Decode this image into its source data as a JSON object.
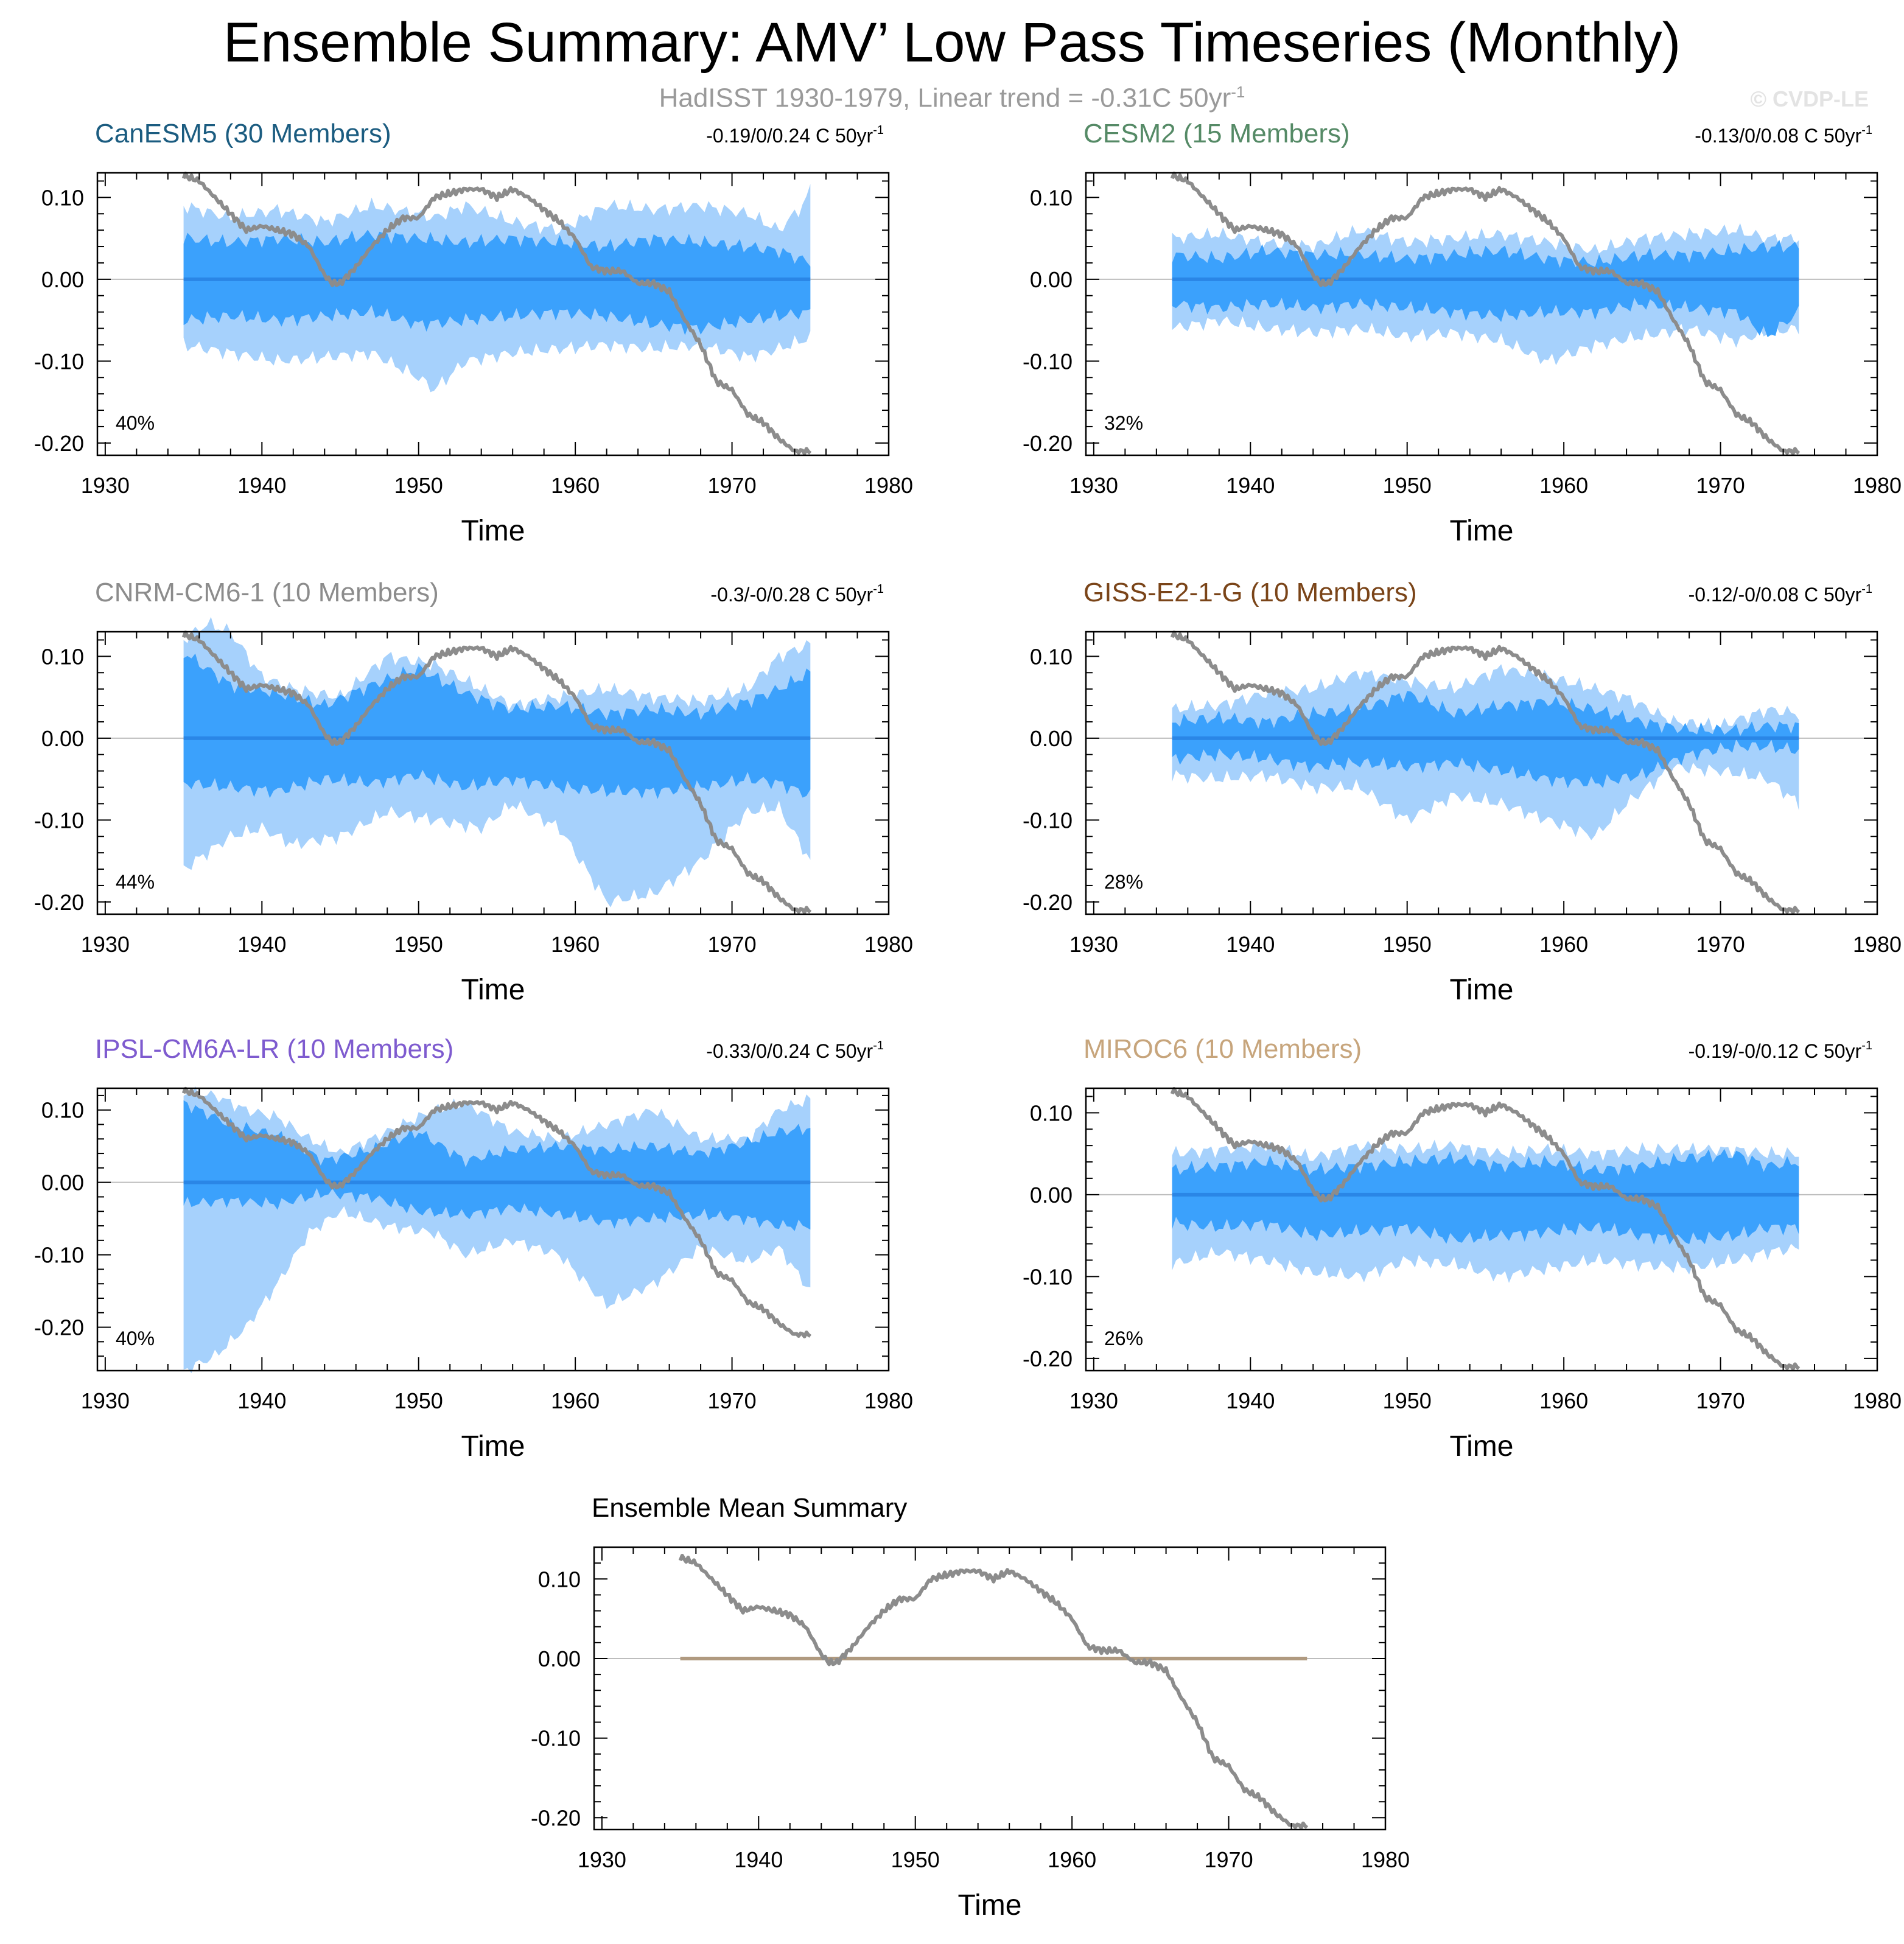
{
  "header": {
    "title": "Ensemble Summary: AMV’ Low Pass Timeseries (Monthly)",
    "subtitle": "HadISST 1930-1979, Linear trend = -0.31C 50yr",
    "subtitle_exp": "-1",
    "copyright": "© CVDP-LE"
  },
  "colors": {
    "outer_band": "#a6d1fc",
    "inner_band": "#3ba1fc",
    "member_line": "#2a86e6",
    "obs_line": "#8c8c8c",
    "zero_line": "#bdbdbd"
  },
  "chart_data": [
    {
      "type": "area",
      "title": "CanESM5 (30 Members)",
      "title_color": "#1b5c80",
      "trend": "-0.19/0/0.24 C 50yr",
      "trend_exp": "-1",
      "percent": "40%",
      "xlabel": "Time",
      "xlim": [
        1929.5,
        1980
      ],
      "ylim": [
        -0.215,
        0.13
      ],
      "xticks": [
        1930,
        1940,
        1950,
        1960,
        1970,
        1980
      ],
      "yticks": [
        0.1,
        0.0,
        -0.1,
        -0.2
      ],
      "ytick_labels": [
        "0.10",
        "0.00",
        "-0.10",
        "-0.20"
      ],
      "outer_band": {
        "x": [
          1935,
          1938,
          1941,
          1944,
          1947,
          1950,
          1951,
          1953,
          1956,
          1959,
          1962,
          1965,
          1968,
          1971,
          1973,
          1974.5,
          1975
        ],
        "upper": [
          0.09,
          0.075,
          0.085,
          0.07,
          0.09,
          0.08,
          0.075,
          0.09,
          0.07,
          0.06,
          0.09,
          0.085,
          0.09,
          0.08,
          0.06,
          0.09,
          0.11
        ],
        "lower": [
          -0.08,
          -0.09,
          -0.1,
          -0.095,
          -0.09,
          -0.12,
          -0.135,
          -0.1,
          -0.09,
          -0.085,
          -0.08,
          -0.085,
          -0.08,
          -0.095,
          -0.085,
          -0.075,
          -0.07
        ]
      },
      "inner_band": {
        "x": [
          1935,
          1938,
          1941,
          1944,
          1947,
          1950,
          1953,
          1956,
          1959,
          1962,
          1965,
          1968,
          1971,
          1973,
          1975
        ],
        "upper": [
          0.05,
          0.045,
          0.05,
          0.045,
          0.055,
          0.05,
          0.045,
          0.05,
          0.045,
          0.04,
          0.05,
          0.045,
          0.04,
          0.035,
          0.02
        ],
        "lower": [
          -0.05,
          -0.045,
          -0.05,
          -0.045,
          -0.04,
          -0.055,
          -0.05,
          -0.045,
          -0.04,
          -0.045,
          -0.055,
          -0.06,
          -0.05,
          -0.045,
          -0.04
        ]
      }
    },
    {
      "type": "area",
      "title": "CESM2 (15 Members)",
      "title_color": "#558a66",
      "trend": "-0.13/0/0.08 C 50yr",
      "trend_exp": "-1",
      "percent": "32%",
      "xlabel": "Time",
      "xlim": [
        1929.5,
        1980
      ],
      "ylim": [
        -0.215,
        0.13
      ],
      "xticks": [
        1930,
        1940,
        1950,
        1960,
        1970,
        1980
      ],
      "yticks": [
        0.1,
        0.0,
        -0.1,
        -0.2
      ],
      "ytick_labels": [
        "0.10",
        "0.00",
        "-0.10",
        "-0.20"
      ],
      "outer_band": {
        "x": [
          1935,
          1938,
          1941,
          1944,
          1947,
          1950,
          1953,
          1956,
          1959,
          1962,
          1965,
          1968,
          1971,
          1973,
          1975
        ],
        "upper": [
          0.05,
          0.055,
          0.045,
          0.04,
          0.06,
          0.045,
          0.05,
          0.055,
          0.045,
          0.035,
          0.05,
          0.055,
          0.06,
          0.05,
          0.05
        ],
        "lower": [
          -0.06,
          -0.05,
          -0.06,
          -0.065,
          -0.06,
          -0.07,
          -0.065,
          -0.075,
          -0.1,
          -0.08,
          -0.07,
          -0.06,
          -0.075,
          -0.065,
          -0.06
        ]
      },
      "inner_band": {
        "x": [
          1935,
          1938,
          1941,
          1944,
          1947,
          1950,
          1953,
          1956,
          1959,
          1962,
          1965,
          1968,
          1971,
          1973,
          1975
        ],
        "upper": [
          0.03,
          0.025,
          0.035,
          0.03,
          0.03,
          0.025,
          0.03,
          0.035,
          0.025,
          0.02,
          0.03,
          0.03,
          0.035,
          0.04,
          0.04
        ],
        "lower": [
          -0.03,
          -0.035,
          -0.03,
          -0.035,
          -0.03,
          -0.035,
          -0.04,
          -0.045,
          -0.04,
          -0.04,
          -0.03,
          -0.035,
          -0.04,
          -0.07,
          -0.04
        ]
      }
    },
    {
      "type": "area",
      "title": "CNRM-CM6-1 (10 Members)",
      "title_color": "#8c8c8c",
      "trend": "-0.3/-0/0.28 C 50yr",
      "trend_exp": "-1",
      "percent": "44%",
      "xlabel": "Time",
      "xlim": [
        1929.5,
        1980
      ],
      "ylim": [
        -0.215,
        0.13
      ],
      "xticks": [
        1930,
        1940,
        1950,
        1960,
        1970,
        1980
      ],
      "yticks": [
        0.1,
        0.0,
        -0.1,
        -0.2
      ],
      "ytick_labels": [
        "0.10",
        "0.00",
        "-0.10",
        "-0.20"
      ],
      "outer_band": {
        "x": [
          1935,
          1936.5,
          1938,
          1940,
          1942,
          1945,
          1948,
          1951,
          1954,
          1956,
          1959,
          1962,
          1965,
          1968,
          1971,
          1973,
          1975
        ],
        "upper": [
          0.12,
          0.14,
          0.13,
          0.075,
          0.06,
          0.05,
          0.1,
          0.09,
          0.06,
          0.04,
          0.05,
          0.06,
          0.05,
          0.045,
          0.06,
          0.1,
          0.115
        ],
        "lower": [
          -0.16,
          -0.14,
          -0.12,
          -0.11,
          -0.13,
          -0.12,
          -0.09,
          -0.1,
          -0.11,
          -0.08,
          -0.11,
          -0.2,
          -0.19,
          -0.15,
          -0.09,
          -0.085,
          -0.15
        ]
      },
      "inner_band": {
        "x": [
          1935,
          1938,
          1941,
          1944,
          1947,
          1950,
          1953,
          1956,
          1959,
          1962,
          1965,
          1968,
          1971,
          1973,
          1975
        ],
        "upper": [
          0.105,
          0.065,
          0.055,
          0.04,
          0.065,
          0.085,
          0.055,
          0.035,
          0.04,
          0.03,
          0.035,
          0.03,
          0.045,
          0.06,
          0.08
        ],
        "lower": [
          -0.055,
          -0.06,
          -0.065,
          -0.05,
          -0.055,
          -0.045,
          -0.06,
          -0.05,
          -0.06,
          -0.065,
          -0.065,
          -0.06,
          -0.05,
          -0.055,
          -0.07
        ]
      }
    },
    {
      "type": "area",
      "title": "GISS-E2-1-G (10 Members)",
      "title_color": "#7a4418",
      "trend": "-0.12/-0/0.08 C 50yr",
      "trend_exp": "-1",
      "percent": "28%",
      "xlabel": "Time",
      "xlim": [
        1929.5,
        1980
      ],
      "ylim": [
        -0.215,
        0.13
      ],
      "xticks": [
        1930,
        1940,
        1950,
        1960,
        1970,
        1980
      ],
      "yticks": [
        0.1,
        0.0,
        -0.1,
        -0.2
      ],
      "ytick_labels": [
        "0.10",
        "0.00",
        "-0.10",
        "-0.20"
      ],
      "outer_band": {
        "x": [
          1935,
          1938,
          1941,
          1944,
          1947,
          1950,
          1953,
          1956,
          1959,
          1962,
          1964,
          1967,
          1970,
          1973,
          1975
        ],
        "upper": [
          0.035,
          0.04,
          0.055,
          0.06,
          0.08,
          0.07,
          0.06,
          0.085,
          0.075,
          0.06,
          0.05,
          0.02,
          0.015,
          0.035,
          0.03
        ],
        "lower": [
          -0.045,
          -0.05,
          -0.045,
          -0.06,
          -0.06,
          -0.1,
          -0.07,
          -0.08,
          -0.1,
          -0.12,
          -0.08,
          -0.035,
          -0.04,
          -0.05,
          -0.08
        ]
      },
      "inner_band": {
        "x": [
          1935,
          1938,
          1941,
          1944,
          1947,
          1950,
          1953,
          1956,
          1959,
          1962,
          1965,
          1968,
          1971,
          1973,
          1975
        ],
        "upper": [
          0.02,
          0.025,
          0.02,
          0.03,
          0.035,
          0.055,
          0.03,
          0.04,
          0.045,
          0.035,
          0.02,
          0.01,
          0.01,
          0.015,
          0.015
        ],
        "lower": [
          -0.025,
          -0.02,
          -0.025,
          -0.035,
          -0.03,
          -0.035,
          -0.03,
          -0.04,
          -0.05,
          -0.055,
          -0.045,
          -0.02,
          -0.01,
          -0.01,
          -0.015
        ]
      }
    },
    {
      "type": "area",
      "title": "IPSL-CM6A-LR (10 Members)",
      "title_color": "#7e5bcf",
      "trend": "-0.33/0/0.24 C 50yr",
      "trend_exp": "-1",
      "percent": "40%",
      "xlabel": "Time",
      "xlim": [
        1929.5,
        1980
      ],
      "ylim": [
        -0.26,
        0.13
      ],
      "xticks": [
        1930,
        1940,
        1950,
        1960,
        1970,
        1980
      ],
      "yticks": [
        0.1,
        0.0,
        -0.1,
        -0.2
      ],
      "ytick_labels": [
        "0.10",
        "0.00",
        "-0.10",
        "-0.20"
      ],
      "outer_band": {
        "x": [
          1935,
          1937,
          1939,
          1941,
          1943,
          1945,
          1948,
          1951,
          1953,
          1956,
          1959,
          1962,
          1965,
          1968,
          1971,
          1973,
          1975
        ],
        "upper": [
          0.125,
          0.12,
          0.1,
          0.09,
          0.06,
          0.04,
          0.07,
          0.1,
          0.11,
          0.07,
          0.06,
          0.08,
          0.1,
          0.06,
          0.06,
          0.1,
          0.115
        ],
        "lower": [
          -0.26,
          -0.24,
          -0.2,
          -0.14,
          -0.07,
          -0.04,
          -0.06,
          -0.07,
          -0.1,
          -0.08,
          -0.1,
          -0.17,
          -0.14,
          -0.09,
          -0.11,
          -0.09,
          -0.15
        ]
      },
      "inner_band": {
        "x": [
          1935,
          1938,
          1941,
          1944,
          1947,
          1950,
          1953,
          1956,
          1959,
          1962,
          1965,
          1968,
          1971,
          1973,
          1975
        ],
        "upper": [
          0.11,
          0.08,
          0.065,
          0.03,
          0.045,
          0.07,
          0.03,
          0.045,
          0.05,
          0.045,
          0.05,
          0.04,
          0.055,
          0.07,
          0.075
        ],
        "lower": [
          -0.03,
          -0.025,
          -0.03,
          -0.015,
          -0.02,
          -0.04,
          -0.045,
          -0.035,
          -0.045,
          -0.055,
          -0.05,
          -0.045,
          -0.05,
          -0.06,
          -0.06
        ]
      }
    },
    {
      "type": "area",
      "title": "MIROC6 (10 Members)",
      "title_color": "#c7a57c",
      "trend": "-0.19/-0/0.12 C 50yr",
      "trend_exp": "-1",
      "percent": "26%",
      "xlabel": "Time",
      "xlim": [
        1929.5,
        1980
      ],
      "ylim": [
        -0.215,
        0.13
      ],
      "xticks": [
        1930,
        1940,
        1950,
        1960,
        1970,
        1980
      ],
      "yticks": [
        0.1,
        0.0,
        -0.1,
        -0.2
      ],
      "ytick_labels": [
        "0.10",
        "0.00",
        "-0.10",
        "-0.20"
      ],
      "outer_band": {
        "x": [
          1935,
          1938,
          1941,
          1944,
          1947,
          1950,
          1953,
          1956,
          1959,
          1962,
          1965,
          1968,
          1971,
          1973,
          1975
        ],
        "upper": [
          0.05,
          0.055,
          0.06,
          0.045,
          0.06,
          0.055,
          0.06,
          0.05,
          0.055,
          0.05,
          0.055,
          0.055,
          0.055,
          0.05,
          0.05
        ],
        "lower": [
          -0.085,
          -0.07,
          -0.08,
          -0.095,
          -0.1,
          -0.08,
          -0.085,
          -0.1,
          -0.09,
          -0.08,
          -0.085,
          -0.09,
          -0.08,
          -0.07,
          -0.065
        ]
      },
      "inner_band": {
        "x": [
          1935,
          1938,
          1941,
          1944,
          1947,
          1950,
          1953,
          1956,
          1959,
          1962,
          1965,
          1968,
          1971,
          1973,
          1975
        ],
        "upper": [
          0.03,
          0.035,
          0.04,
          0.03,
          0.035,
          0.04,
          0.045,
          0.035,
          0.04,
          0.03,
          0.035,
          0.045,
          0.05,
          0.035,
          0.04
        ],
        "lower": [
          -0.035,
          -0.04,
          -0.035,
          -0.05,
          -0.045,
          -0.04,
          -0.055,
          -0.05,
          -0.045,
          -0.04,
          -0.05,
          -0.055,
          -0.05,
          -0.04,
          -0.04
        ]
      }
    },
    {
      "type": "line",
      "title": "Ensemble Mean Summary",
      "title_color": "#000000",
      "xlabel": "Time",
      "xlim": [
        1929.5,
        1980
      ],
      "ylim": [
        -0.215,
        0.14
      ],
      "xticks": [
        1930,
        1940,
        1950,
        1960,
        1970,
        1980
      ],
      "yticks": [
        0.1,
        0.0,
        -0.1,
        -0.2
      ],
      "ytick_labels": [
        "0.10",
        "0.00",
        "-0.10",
        "-0.20"
      ],
      "mean_line": {
        "x": [
          1935,
          1975
        ],
        "y": [
          0,
          0
        ],
        "color": "#b09a80"
      }
    }
  ],
  "obs_series": {
    "name": "HadISST",
    "x": [
      1935,
      1936,
      1937,
      1938,
      1939,
      1940,
      1941,
      1942,
      1943,
      1944,
      1944.5,
      1945,
      1946,
      1947,
      1948,
      1949,
      1950,
      1951,
      1952,
      1953,
      1954,
      1955,
      1956,
      1957,
      1958,
      1959,
      1960,
      1961,
      1962,
      1963,
      1964,
      1965,
      1966,
      1967,
      1968,
      1969,
      1970,
      1971,
      1972,
      1973,
      1974,
      1975
    ],
    "y": [
      0.127,
      0.12,
      0.1,
      0.08,
      0.06,
      0.065,
      0.06,
      0.055,
      0.04,
      0.005,
      -0.005,
      -0.005,
      0.015,
      0.04,
      0.06,
      0.075,
      0.075,
      0.1,
      0.105,
      0.11,
      0.11,
      0.1,
      0.11,
      0.1,
      0.085,
      0.07,
      0.05,
      0.015,
      0.01,
      0.01,
      -0.005,
      -0.005,
      -0.015,
      -0.05,
      -0.08,
      -0.125,
      -0.135,
      -0.165,
      -0.175,
      -0.195,
      -0.21,
      -0.21
    ]
  }
}
